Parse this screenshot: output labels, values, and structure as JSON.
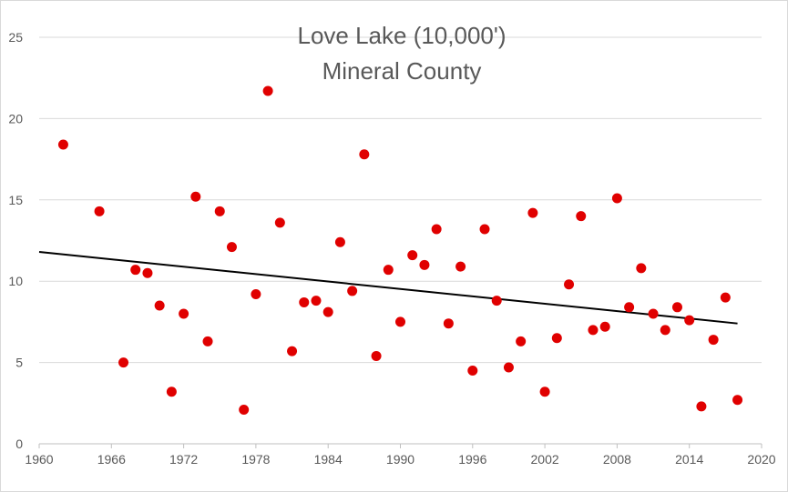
{
  "chart_data": {
    "type": "scatter",
    "title": "Love Lake  (10,000')",
    "subtitle": "Mineral County",
    "xlabel": "",
    "ylabel": "",
    "xlim": [
      1960,
      2020
    ],
    "ylim": [
      0,
      25
    ],
    "x_ticks": [
      1960,
      1966,
      1972,
      1978,
      1984,
      1990,
      1996,
      2002,
      2008,
      2014,
      2020
    ],
    "y_ticks": [
      0,
      5,
      10,
      15,
      20,
      25
    ],
    "grid": true,
    "legend": "none",
    "marker_color": "#e00000",
    "trendline_color": "#000000",
    "points": [
      {
        "x": 1962,
        "y": 18.4
      },
      {
        "x": 1965,
        "y": 14.3
      },
      {
        "x": 1967,
        "y": 5.0
      },
      {
        "x": 1968,
        "y": 10.7
      },
      {
        "x": 1969,
        "y": 10.5
      },
      {
        "x": 1970,
        "y": 8.5
      },
      {
        "x": 1971,
        "y": 3.2
      },
      {
        "x": 1972,
        "y": 8.0
      },
      {
        "x": 1973,
        "y": 15.2
      },
      {
        "x": 1974,
        "y": 6.3
      },
      {
        "x": 1975,
        "y": 14.3
      },
      {
        "x": 1976,
        "y": 12.1
      },
      {
        "x": 1977,
        "y": 2.1
      },
      {
        "x": 1978,
        "y": 9.2
      },
      {
        "x": 1979,
        "y": 21.7
      },
      {
        "x": 1980,
        "y": 13.6
      },
      {
        "x": 1981,
        "y": 5.7
      },
      {
        "x": 1982,
        "y": 8.7
      },
      {
        "x": 1983,
        "y": 8.8
      },
      {
        "x": 1984,
        "y": 8.1
      },
      {
        "x": 1985,
        "y": 12.4
      },
      {
        "x": 1986,
        "y": 9.4
      },
      {
        "x": 1987,
        "y": 17.8
      },
      {
        "x": 1988,
        "y": 5.4
      },
      {
        "x": 1989,
        "y": 10.7
      },
      {
        "x": 1990,
        "y": 7.5
      },
      {
        "x": 1991,
        "y": 11.6
      },
      {
        "x": 1992,
        "y": 11.0
      },
      {
        "x": 1993,
        "y": 13.2
      },
      {
        "x": 1994,
        "y": 7.4
      },
      {
        "x": 1995,
        "y": 10.9
      },
      {
        "x": 1996,
        "y": 4.5
      },
      {
        "x": 1997,
        "y": 13.2
      },
      {
        "x": 1998,
        "y": 8.8
      },
      {
        "x": 1999,
        "y": 4.7
      },
      {
        "x": 2000,
        "y": 6.3
      },
      {
        "x": 2001,
        "y": 14.2
      },
      {
        "x": 2002,
        "y": 3.2
      },
      {
        "x": 2003,
        "y": 6.5
      },
      {
        "x": 2004,
        "y": 9.8
      },
      {
        "x": 2005,
        "y": 14.0
      },
      {
        "x": 2006,
        "y": 7.0
      },
      {
        "x": 2007,
        "y": 7.2
      },
      {
        "x": 2008,
        "y": 15.1
      },
      {
        "x": 2009,
        "y": 8.4
      },
      {
        "x": 2010,
        "y": 10.8
      },
      {
        "x": 2011,
        "y": 8.0
      },
      {
        "x": 2012,
        "y": 7.0
      },
      {
        "x": 2013,
        "y": 8.4
      },
      {
        "x": 2014,
        "y": 7.6
      },
      {
        "x": 2015,
        "y": 2.3
      },
      {
        "x": 2016,
        "y": 6.4
      },
      {
        "x": 2017,
        "y": 9.0
      },
      {
        "x": 2018,
        "y": 2.7
      }
    ],
    "trendline": {
      "x": [
        1960,
        2018
      ],
      "y": [
        11.8,
        7.4
      ]
    }
  }
}
